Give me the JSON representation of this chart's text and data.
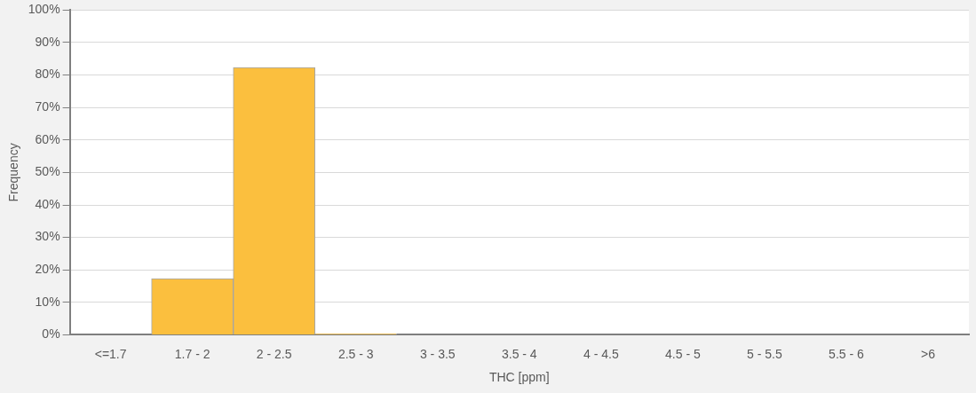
{
  "chart_data": {
    "type": "bar",
    "xlabel": "THC [ppm]",
    "ylabel": "Frequency",
    "categories": [
      "<=1.7",
      "1.7 - 2",
      "2 - 2.5",
      "2.5 - 3",
      "3 - 3.5",
      "3.5 - 4",
      "4 - 4.5",
      "4.5 - 5",
      "5 - 5.5",
      "5.5 - 6",
      ">6"
    ],
    "values": [
      0,
      17.3,
      82.3,
      0.3,
      0,
      0,
      0,
      0,
      0,
      0,
      0
    ],
    "color": "#fbbf3e",
    "ylim": [
      0,
      100
    ],
    "yticks": [
      {
        "value": 0,
        "label": "0%"
      },
      {
        "value": 10,
        "label": "10%"
      },
      {
        "value": 20,
        "label": "20%"
      },
      {
        "value": 30,
        "label": "30%"
      },
      {
        "value": 40,
        "label": "40%"
      },
      {
        "value": 50,
        "label": "50%"
      },
      {
        "value": 60,
        "label": "60%"
      },
      {
        "value": 70,
        "label": "70%"
      },
      {
        "value": 80,
        "label": "80%"
      },
      {
        "value": 90,
        "label": "90%"
      },
      {
        "value": 100,
        "label": "100%"
      }
    ],
    "grid": "y"
  }
}
